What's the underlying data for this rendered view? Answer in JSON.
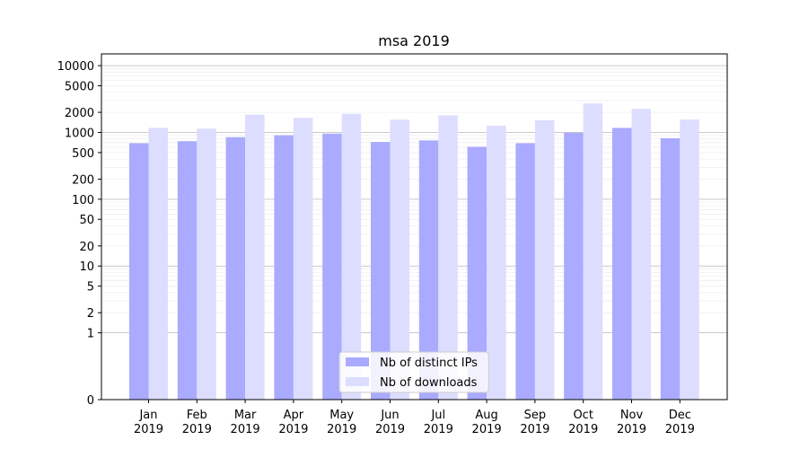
{
  "chart_data": {
    "type": "bar",
    "title": "msa 2019",
    "xlabel": "",
    "ylabel": "",
    "y_scale": "symlog",
    "ylim": [
      0,
      15000
    ],
    "grid": true,
    "legend_position": "bottom-center",
    "categories": [
      {
        "month": "Jan",
        "year": "2019"
      },
      {
        "month": "Feb",
        "year": "2019"
      },
      {
        "month": "Mar",
        "year": "2019"
      },
      {
        "month": "Apr",
        "year": "2019"
      },
      {
        "month": "May",
        "year": "2019"
      },
      {
        "month": "Jun",
        "year": "2019"
      },
      {
        "month": "Jul",
        "year": "2019"
      },
      {
        "month": "Aug",
        "year": "2019"
      },
      {
        "month": "Sep",
        "year": "2019"
      },
      {
        "month": "Oct",
        "year": "2019"
      },
      {
        "month": "Nov",
        "year": "2019"
      },
      {
        "month": "Dec",
        "year": "2019"
      }
    ],
    "y_ticks": [
      {
        "value": 0,
        "label": "0"
      },
      {
        "value": 1,
        "label": "1"
      },
      {
        "value": 2,
        "label": "2"
      },
      {
        "value": 5,
        "label": "5"
      },
      {
        "value": 10,
        "label": "10"
      },
      {
        "value": 20,
        "label": "20"
      },
      {
        "value": 50,
        "label": "50"
      },
      {
        "value": 100,
        "label": "100"
      },
      {
        "value": 200,
        "label": "200"
      },
      {
        "value": 500,
        "label": "500"
      },
      {
        "value": 1000,
        "label": "1000"
      },
      {
        "value": 2000,
        "label": "2000"
      },
      {
        "value": 5000,
        "label": "5000"
      },
      {
        "value": 10000,
        "label": "10000"
      }
    ],
    "series": [
      {
        "name": "Nb of distinct IPs",
        "color": "#aaaaff",
        "values": [
          690,
          740,
          850,
          910,
          960,
          720,
          760,
          610,
          690,
          990,
          1170,
          820
        ]
      },
      {
        "name": "Nb of downloads",
        "color": "#ddddff",
        "values": [
          1170,
          1140,
          1850,
          1650,
          1900,
          1550,
          1800,
          1260,
          1520,
          2720,
          2250,
          1560
        ]
      }
    ]
  }
}
